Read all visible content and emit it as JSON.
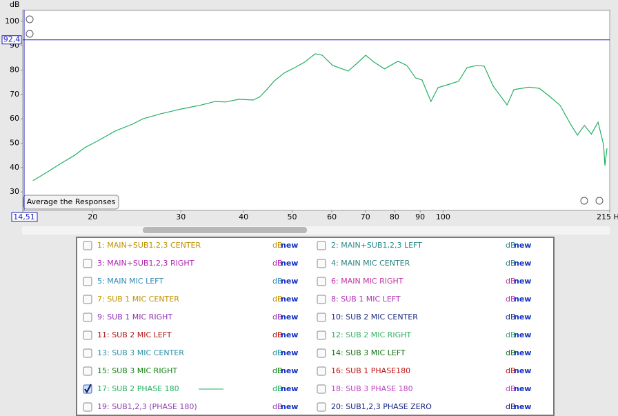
{
  "chart_data": {
    "type": "line",
    "y_label": "dB",
    "xscale": "log",
    "grid": false,
    "xlim": [
      14.51,
      215
    ],
    "ylim": [
      22.4,
      104.5
    ],
    "xticks": [
      {
        "value": 14.51,
        "label": "14,51"
      },
      20,
      30,
      40,
      50,
      60,
      70,
      80,
      90,
      100,
      {
        "value": 215,
        "label": "215 H"
      }
    ],
    "yticks": [
      30,
      40,
      50,
      60,
      70,
      80,
      90,
      100
    ],
    "marker": {
      "value": 92.4,
      "label": "92,4",
      "color": "#2020c0"
    },
    "x": [
      15.2,
      16.2,
      17.2,
      18.4,
      19.3,
      20.5,
      22.2,
      24.0,
      25.2,
      27.3,
      30,
      33.0,
      35.1,
      36.8,
      39.2,
      41.8,
      43.1,
      44.5,
      46,
      48.2,
      50.6,
      53.0,
      55.6,
      57.4,
      60.2,
      64.7,
      67.3,
      70.1,
      72.8,
      76.4,
      81.3,
      84.7,
      88.1,
      90.8,
      94.6,
      97.7,
      103,
      107.4,
      111.6,
      117,
      120.8,
      125.9,
      134.2,
      138.5,
      148.5,
      155.6,
      163.3,
      171.3,
      179.6,
      185.4,
      191.4,
      197.6,
      203.8,
      209,
      210.3,
      212.3
    ],
    "series": [
      {
        "color": "#20b060",
        "values": [
          34.6,
          38,
          41.4,
          45,
          48.2,
          51,
          55,
          57.8,
          60,
          62,
          64,
          65.7,
          67.1,
          66.9,
          68,
          67.7,
          69,
          72,
          75.4,
          78.8,
          81,
          83.3,
          86.7,
          86.1,
          81.9,
          79.6,
          82.7,
          86.1,
          83.3,
          80.5,
          83.6,
          81.9,
          76.8,
          75.9,
          67.1,
          72.8,
          74.2,
          75.4,
          81,
          81.9,
          81.6,
          73.4,
          65.7,
          72,
          73,
          72.5,
          69.1,
          65.4,
          57.8,
          53.3,
          57.3,
          53.7,
          58.6,
          49.3,
          40.8,
          47.9
        ]
      }
    ]
  },
  "button": {
    "label": "Average the Responses"
  },
  "db_text": "dB",
  "new_text": "new",
  "channels": [
    {
      "label": "1: MAIN+SUB1,2,3 CENTER",
      "color": "#c09000",
      "checked": false
    },
    {
      "label": "2: MAIN+SUB1,2,3 LEFT",
      "color": "#2a8a8a",
      "checked": false
    },
    {
      "label": "3: MAIN+SUB1,2,3 RIGHT",
      "color": "#b020b0",
      "checked": false
    },
    {
      "label": "4: MAIN MIC CENTER",
      "color": "#2a8080",
      "checked": false
    },
    {
      "label": "5: MAIN MIC LEFT",
      "color": "#3088b0",
      "checked": false
    },
    {
      "label": "6: MAIN MIC RIGHT",
      "color": "#c030a0",
      "checked": false
    },
    {
      "label": "7: SUB 1 MIC CENTER",
      "color": "#c09000",
      "checked": false
    },
    {
      "label": "8: SUB 1 MIC LEFT",
      "color": "#b030b0",
      "checked": false
    },
    {
      "label": "9: SUB 1 MIC RIGHT",
      "color": "#9030b0",
      "checked": false
    },
    {
      "label": "10: SUB 2 MIC CENTER",
      "color": "#1a2a80",
      "checked": false
    },
    {
      "label": "11: SUB 2 MIC LEFT",
      "color": "#b01010",
      "checked": false
    },
    {
      "label": "12: SUB 2 MIC RIGHT",
      "color": "#30b060",
      "checked": false
    },
    {
      "label": "13: SUB 3 MIC CENTER",
      "color": "#2a90a8",
      "checked": false
    },
    {
      "label": "14: SUB 3 MIC LEFT",
      "color": "#107010",
      "checked": false
    },
    {
      "label": "15: SUB 3 MIC RIGHT",
      "color": "#108010",
      "checked": false
    },
    {
      "label": "16: SUB 1 PHASE180",
      "color": "#c01010",
      "checked": false
    },
    {
      "label": "17: SUB 2 PHASE 180",
      "color": "#20b060",
      "checked": true
    },
    {
      "label": "18: SUB 3 PHASE 180",
      "color": "#c040c0",
      "checked": false
    },
    {
      "label": "19: SUB1,2,3 (PHASE 180)",
      "color": "#9040b0",
      "checked": false
    },
    {
      "label": "20: SUB1,2,3 PHASE ZERO",
      "color": "#102080",
      "checked": false
    }
  ]
}
